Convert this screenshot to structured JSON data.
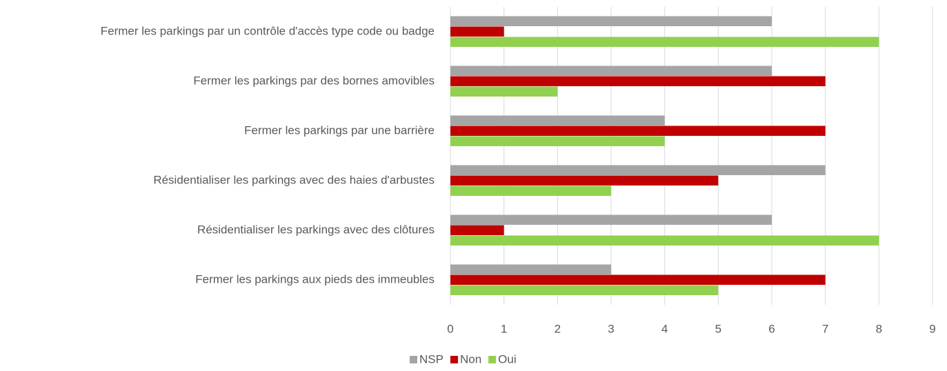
{
  "chart_data": {
    "type": "hbar",
    "categories": [
      "Fermer les parkings par un contrôle d'accès type code ou badge",
      "Fermer les parkings par des bornes amovibles",
      "Fermer les parkings par une barrière",
      "Résidentialiser les parkings avec des haies d'arbustes",
      "Résidentialiser les parkings avec des clôtures",
      "Fermer les parkings aux pieds des immeubles"
    ],
    "series": [
      {
        "name": "NSP",
        "color": "#a5a5a5",
        "values": [
          6,
          6,
          4,
          7,
          6,
          3
        ]
      },
      {
        "name": "Non",
        "color": "#c00000",
        "values": [
          1,
          7,
          7,
          5,
          1,
          7
        ]
      },
      {
        "name": "Oui",
        "color": "#92d050",
        "values": [
          8,
          2,
          4,
          3,
          8,
          5
        ]
      }
    ],
    "xlim": [
      0,
      9
    ],
    "xticks": [
      0,
      1,
      2,
      3,
      4,
      5,
      6,
      7,
      8,
      9
    ],
    "grid": true,
    "legend": "bottom"
  }
}
